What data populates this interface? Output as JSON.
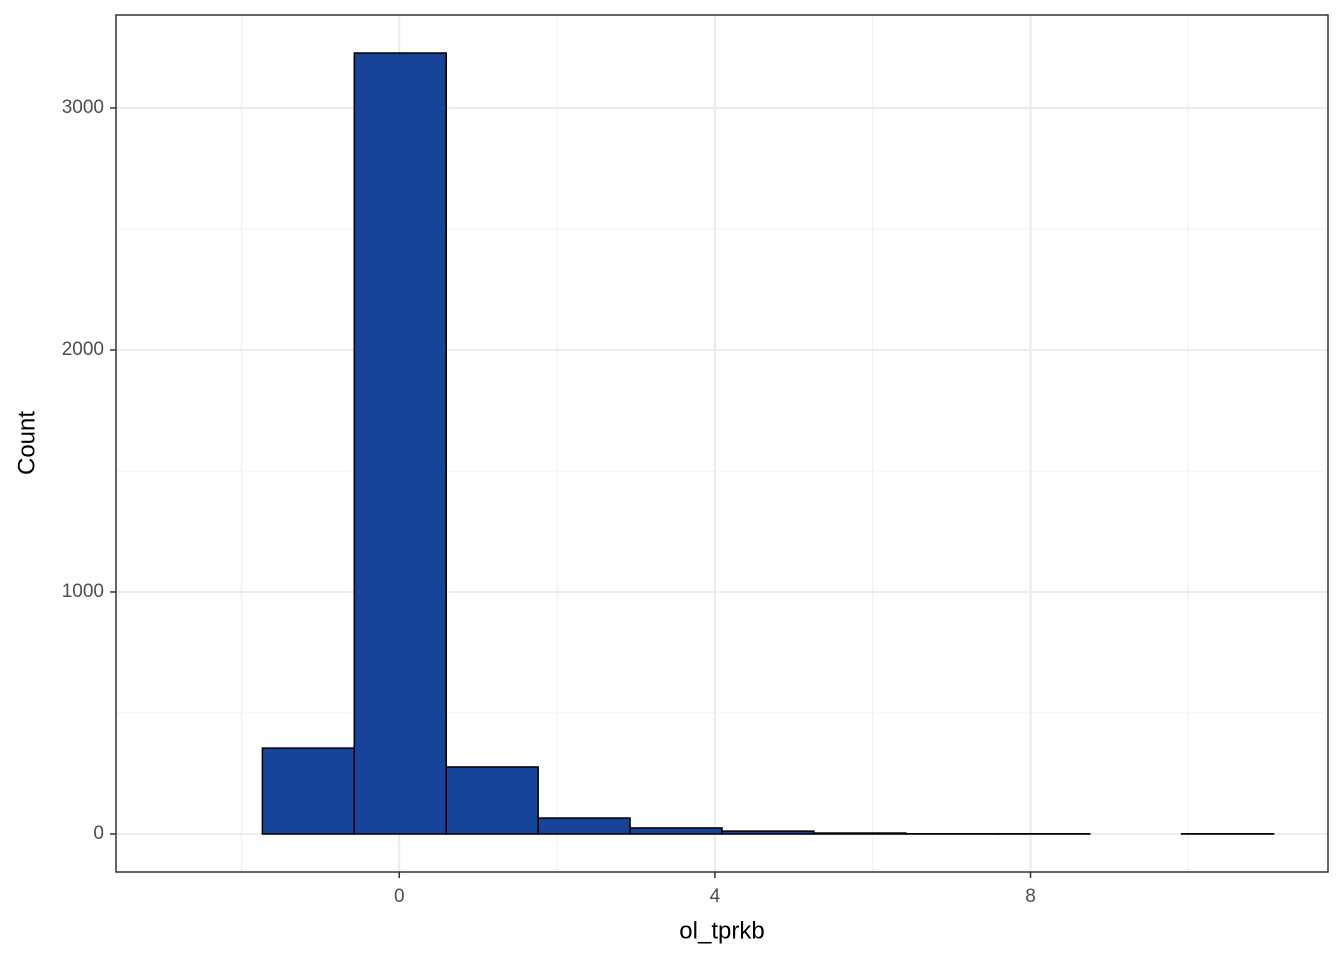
{
  "chart_data": {
    "type": "histogram",
    "xlabel": "ol_tprkb",
    "ylabel": "Count",
    "bins": [
      -2.9,
      -1.735,
      -0.57,
      0.595,
      1.76,
      2.925,
      4.09,
      5.255,
      6.42,
      7.585,
      8.75,
      9.915,
      11.08
    ],
    "values": [
      0,
      355,
      3227,
      277,
      66,
      25,
      12,
      4,
      1,
      1,
      0,
      1
    ],
    "color": "#17449a",
    "edgecolor": "#000000",
    "xlim": [
      -3.59,
      11.77
    ],
    "ylim": [
      -157,
      3384
    ],
    "xticks": [
      0,
      4,
      8
    ],
    "yticks": [
      0,
      1000,
      2000,
      3000
    ],
    "xminor": [
      -2,
      2,
      6,
      10
    ],
    "yminor": [
      500,
      1500,
      2500
    ],
    "grid": true
  }
}
